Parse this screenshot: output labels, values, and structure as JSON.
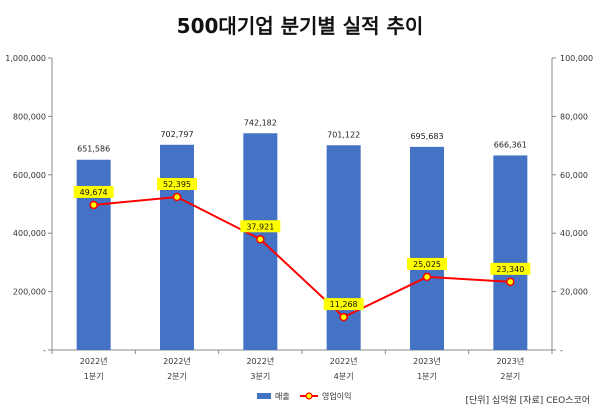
{
  "chart_data": {
    "type": "bar",
    "title": "500대기업 분기별 실적 추이",
    "categories": [
      [
        "2022년",
        "1분기"
      ],
      [
        "2022년",
        "2분기"
      ],
      [
        "2022년",
        "3분기"
      ],
      [
        "2022년",
        "4분기"
      ],
      [
        "2023년",
        "1분기"
      ],
      [
        "2023년",
        "2분기"
      ]
    ],
    "series": [
      {
        "name": "매출",
        "type": "bar",
        "axis": "left",
        "color": "#4472C4",
        "values": [
          651586,
          702797,
          742182,
          701122,
          695683,
          666361
        ],
        "labels": [
          "651,586",
          "702,797",
          "742,182",
          "701,122",
          "695,683",
          "666,361"
        ]
      },
      {
        "name": "영업이익",
        "type": "line",
        "axis": "right",
        "color": "#FF0000",
        "marker_fill": "#FFFF00",
        "label_bg": "#FFFF00",
        "values": [
          49674,
          52395,
          37921,
          11268,
          25025,
          23340
        ],
        "labels": [
          "49,674",
          "52,395",
          "37,921",
          "11,268",
          "25,025",
          "23,340"
        ]
      }
    ],
    "y_left": {
      "ylim": [
        0,
        1000000
      ],
      "ticks": [
        0,
        200000,
        400000,
        600000,
        800000,
        1000000
      ],
      "tick_labels": [
        "-",
        "200,000",
        "400,000",
        "600,000",
        "800,000",
        "1,000,000"
      ]
    },
    "y_right": {
      "ylim": [
        0,
        100000
      ],
      "ticks": [
        0,
        20000,
        40000,
        60000,
        80000,
        100000
      ],
      "tick_labels": [
        "-",
        "20,000",
        "40,000",
        "60,000",
        "80,000",
        "100,000"
      ]
    },
    "legend_position": "bottom",
    "grid": false,
    "footnote": "[단위] 십억원 [자료] CEO스코어"
  }
}
